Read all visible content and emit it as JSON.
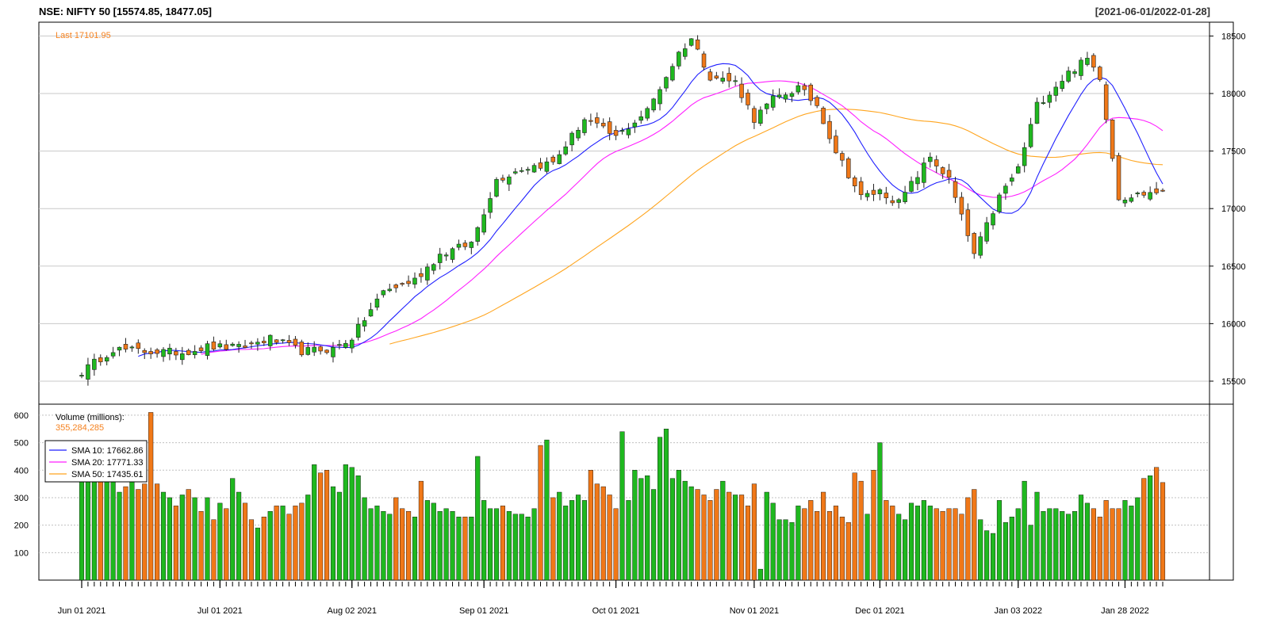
{
  "header": {
    "title": "NSE: NIFTY 50 [15574.85, 18477.05]",
    "range": "[2021-06-01/2022-01-28]"
  },
  "colors": {
    "up": "#1fb81f",
    "down": "#f07818",
    "sma10": "#1f1fff",
    "sma20": "#ff1fff",
    "sma50": "#ffa51f"
  },
  "chart_data": {
    "type": "candlestick",
    "last_label": "Last 17101.95",
    "last_value": 17101.95,
    "price_axis": {
      "min": 15300,
      "max": 18620,
      "ticks": [
        15500,
        16000,
        16500,
        17000,
        17500,
        18000,
        18500
      ]
    },
    "volume_axis": {
      "min": 0,
      "max": 640,
      "ticks": [
        100,
        200,
        300,
        400,
        500,
        600
      ],
      "label": "Volume (millions):",
      "last": "355,284,285"
    },
    "x_labels": [
      "Jun 01 2021",
      "Jul 01 2021",
      "Aug 02 2021",
      "Sep 01 2021",
      "Oct 01 2021",
      "Nov 01 2021",
      "Dec 01 2021",
      "Jan 03 2022",
      "Jan 28 2022"
    ],
    "x_label_index": [
      0,
      22,
      43,
      64,
      85,
      107,
      127,
      149,
      166
    ],
    "anchors": [
      [
        0,
        15580
      ],
      [
        5,
        15780
      ],
      [
        10,
        15760
      ],
      [
        16,
        15750
      ],
      [
        20,
        15800
      ],
      [
        25,
        15790
      ],
      [
        30,
        15870
      ],
      [
        35,
        15760
      ],
      [
        40,
        15780
      ],
      [
        43,
        15880
      ],
      [
        48,
        16280
      ],
      [
        53,
        16380
      ],
      [
        57,
        16600
      ],
      [
        62,
        16700
      ],
      [
        66,
        17250
      ],
      [
        70,
        17350
      ],
      [
        75,
        17400
      ],
      [
        80,
        17780
      ],
      [
        85,
        17620
      ],
      [
        90,
        17850
      ],
      [
        95,
        18350
      ],
      [
        97,
        18480
      ],
      [
        100,
        18150
      ],
      [
        104,
        18100
      ],
      [
        107,
        17780
      ],
      [
        110,
        17950
      ],
      [
        114,
        18050
      ],
      [
        117,
        17900
      ],
      [
        120,
        17500
      ],
      [
        124,
        17100
      ],
      [
        127,
        17150
      ],
      [
        130,
        17050
      ],
      [
        135,
        17450
      ],
      [
        138,
        17250
      ],
      [
        142,
        16600
      ],
      [
        146,
        17100
      ],
      [
        149,
        17350
      ],
      [
        152,
        17900
      ],
      [
        157,
        18180
      ],
      [
        160,
        18300
      ],
      [
        162,
        18150
      ],
      [
        165,
        17100
      ],
      [
        166,
        17101.95
      ]
    ],
    "volumes": [
      400,
      400,
      400,
      390,
      400,
      380,
      320,
      340,
      360,
      330,
      350,
      610,
      350,
      320,
      300,
      270,
      310,
      330,
      300,
      250,
      300,
      220,
      280,
      260,
      370,
      320,
      280,
      220,
      190,
      230,
      250,
      270,
      270,
      240,
      270,
      280,
      310,
      420,
      390,
      400,
      340,
      320,
      420,
      410,
      380,
      300,
      260,
      270,
      250,
      240,
      300,
      260,
      250,
      230,
      360,
      290,
      280,
      250,
      260,
      250,
      230,
      230,
      230,
      450,
      290,
      260,
      260,
      270,
      250,
      240,
      240,
      230,
      260,
      490,
      510,
      300,
      320,
      270,
      290,
      310,
      290,
      400,
      350,
      340,
      310,
      260,
      540,
      290,
      400,
      370,
      380,
      330,
      520,
      550,
      370,
      400,
      360,
      340,
      330,
      310,
      290,
      330,
      360,
      320,
      310,
      310,
      270,
      350,
      40,
      320,
      280,
      220,
      220,
      210,
      270,
      260,
      290,
      250,
      320,
      250,
      270,
      230,
      210,
      390,
      360,
      240,
      400,
      500,
      290,
      270,
      240,
      220,
      280,
      270,
      290,
      270,
      260,
      250,
      260,
      260,
      240,
      300,
      330,
      220,
      180,
      170,
      290,
      210,
      230,
      260,
      360,
      200,
      320,
      250,
      260,
      260,
      250,
      240,
      250,
      310,
      280,
      260,
      230,
      290,
      260,
      260,
      290,
      270,
      300,
      370,
      380,
      410,
      355
    ]
  },
  "legend": {
    "sma10": "SMA 10: 17662.86",
    "sma20": "SMA 20: 17771.33",
    "sma50": "SMA 50: 17435.61"
  }
}
